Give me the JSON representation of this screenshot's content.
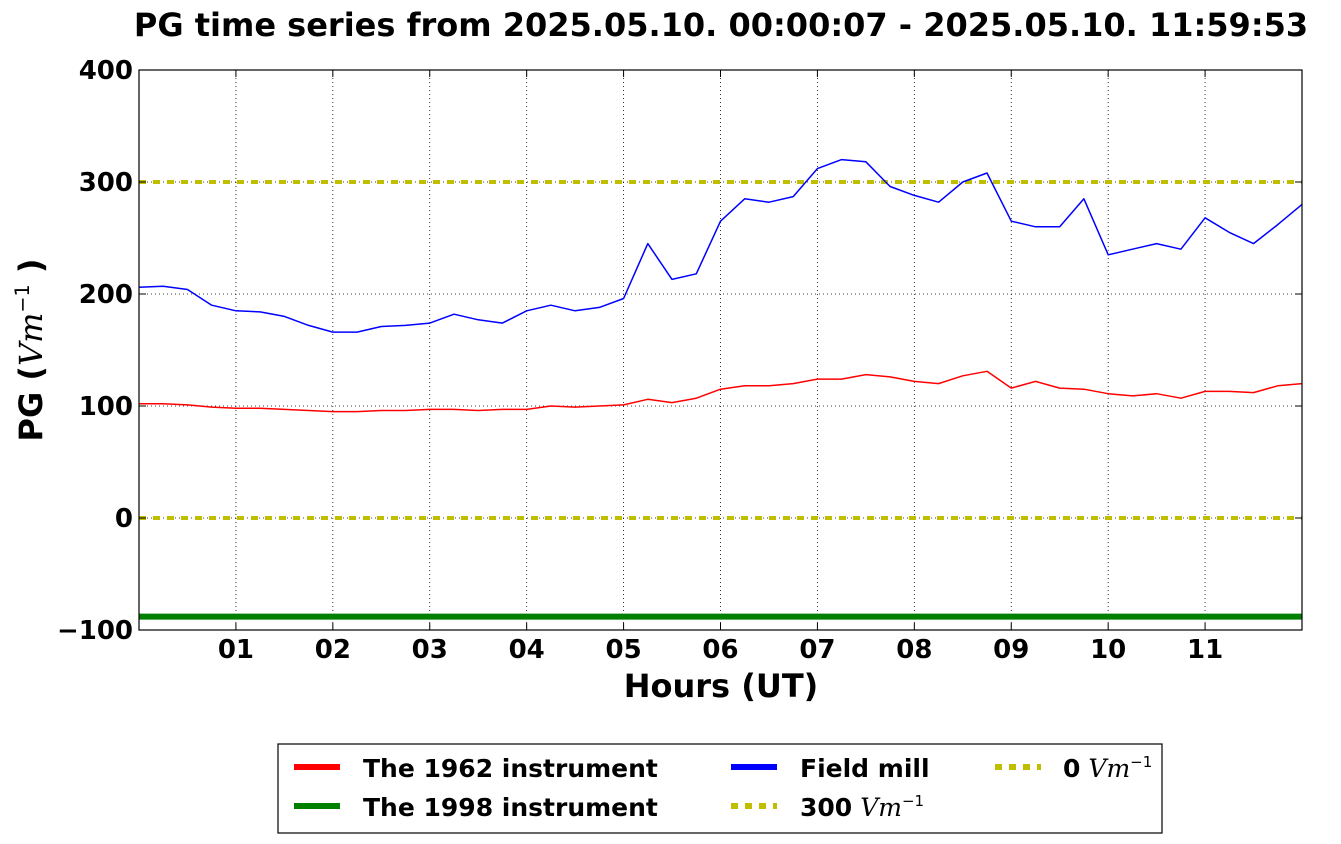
{
  "chart_data": {
    "type": "line",
    "title": "PG time series from 2025.05.10. 00:00:07 - 2025.05.10. 11:59:53",
    "xlabel": "Hours (UT)",
    "ylabel": {
      "prefix": "PG (",
      "unit": "Vm",
      "sup": "−1",
      "suffix": " )"
    },
    "xlim": [
      0,
      12
    ],
    "ylim": [
      -100,
      400
    ],
    "x_ticks": [
      {
        "value": 1,
        "label": "01"
      },
      {
        "value": 2,
        "label": "02"
      },
      {
        "value": 3,
        "label": "03"
      },
      {
        "value": 4,
        "label": "04"
      },
      {
        "value": 5,
        "label": "05"
      },
      {
        "value": 6,
        "label": "06"
      },
      {
        "value": 7,
        "label": "07"
      },
      {
        "value": 8,
        "label": "08"
      },
      {
        "value": 9,
        "label": "09"
      },
      {
        "value": 10,
        "label": "10"
      },
      {
        "value": 11,
        "label": "11"
      }
    ],
    "y_ticks": [
      {
        "value": -100,
        "label": "−100"
      },
      {
        "value": 0,
        "label": "0"
      },
      {
        "value": 100,
        "label": "100"
      },
      {
        "value": 200,
        "label": "200"
      },
      {
        "value": 300,
        "label": "300"
      },
      {
        "value": 400,
        "label": "400"
      }
    ],
    "grid": true,
    "legend_position": "bottom",
    "series": [
      {
        "name": "The 1962 instrument",
        "color": "#ff0000",
        "style": "solid",
        "x": [
          0,
          0.25,
          0.5,
          0.75,
          1,
          1.25,
          1.5,
          1.75,
          2,
          2.25,
          2.5,
          2.75,
          3,
          3.25,
          3.5,
          3.75,
          4,
          4.25,
          4.5,
          4.75,
          5,
          5.25,
          5.5,
          5.75,
          6,
          6.25,
          6.5,
          6.75,
          7,
          7.25,
          7.5,
          7.75,
          8,
          8.25,
          8.5,
          8.75,
          9,
          9.25,
          9.5,
          9.75,
          10,
          10.25,
          10.5,
          10.75,
          11,
          11.25,
          11.5,
          11.75,
          12
        ],
        "y": [
          102,
          102,
          101,
          99,
          98,
          98,
          97,
          96,
          95,
          95,
          96,
          96,
          97,
          97,
          96,
          97,
          97,
          100,
          99,
          100,
          101,
          106,
          103,
          107,
          115,
          118,
          118,
          120,
          124,
          124,
          128,
          126,
          122,
          120,
          127,
          131,
          116,
          122,
          116,
          115,
          111,
          109,
          111,
          107,
          113,
          113,
          112,
          118,
          120
        ]
      },
      {
        "name": "The 1998 instrument",
        "color": "#008000",
        "style": "solid",
        "x": [
          0,
          12
        ],
        "y": [
          -88,
          -88
        ]
      },
      {
        "name": "Field mill",
        "color": "#0000ff",
        "style": "solid",
        "x": [
          0,
          0.25,
          0.5,
          0.75,
          1,
          1.25,
          1.5,
          1.75,
          2,
          2.25,
          2.5,
          2.75,
          3,
          3.25,
          3.5,
          3.75,
          4,
          4.25,
          4.5,
          4.75,
          5,
          5.25,
          5.5,
          5.75,
          6,
          6.25,
          6.5,
          6.75,
          7,
          7.25,
          7.5,
          7.75,
          8,
          8.25,
          8.5,
          8.75,
          9,
          9.25,
          9.5,
          9.75,
          10,
          10.25,
          10.5,
          10.75,
          11,
          11.25,
          11.5,
          11.75,
          12
        ],
        "y": [
          206,
          207,
          204,
          190,
          185,
          184,
          180,
          172,
          166,
          166,
          171,
          172,
          174,
          182,
          177,
          174,
          185,
          190,
          185,
          188,
          196,
          245,
          213,
          218,
          265,
          285,
          282,
          287,
          312,
          320,
          318,
          296,
          288,
          282,
          300,
          308,
          265,
          260,
          260,
          285,
          235,
          240,
          245,
          240,
          268,
          255,
          245,
          262,
          280
        ]
      },
      {
        "name": "300 Vm−1",
        "label": "300",
        "unit": "Vm",
        "sup": "−1",
        "color": "#bfbf00",
        "style": "dotted",
        "x": [
          0,
          12
        ],
        "y": [
          300,
          300
        ]
      },
      {
        "name": "0 Vm−1",
        "label": "0",
        "unit": "Vm",
        "sup": "−1",
        "color": "#bfbf00",
        "style": "dotted",
        "x": [
          0,
          12
        ],
        "y": [
          0,
          0
        ]
      }
    ]
  }
}
